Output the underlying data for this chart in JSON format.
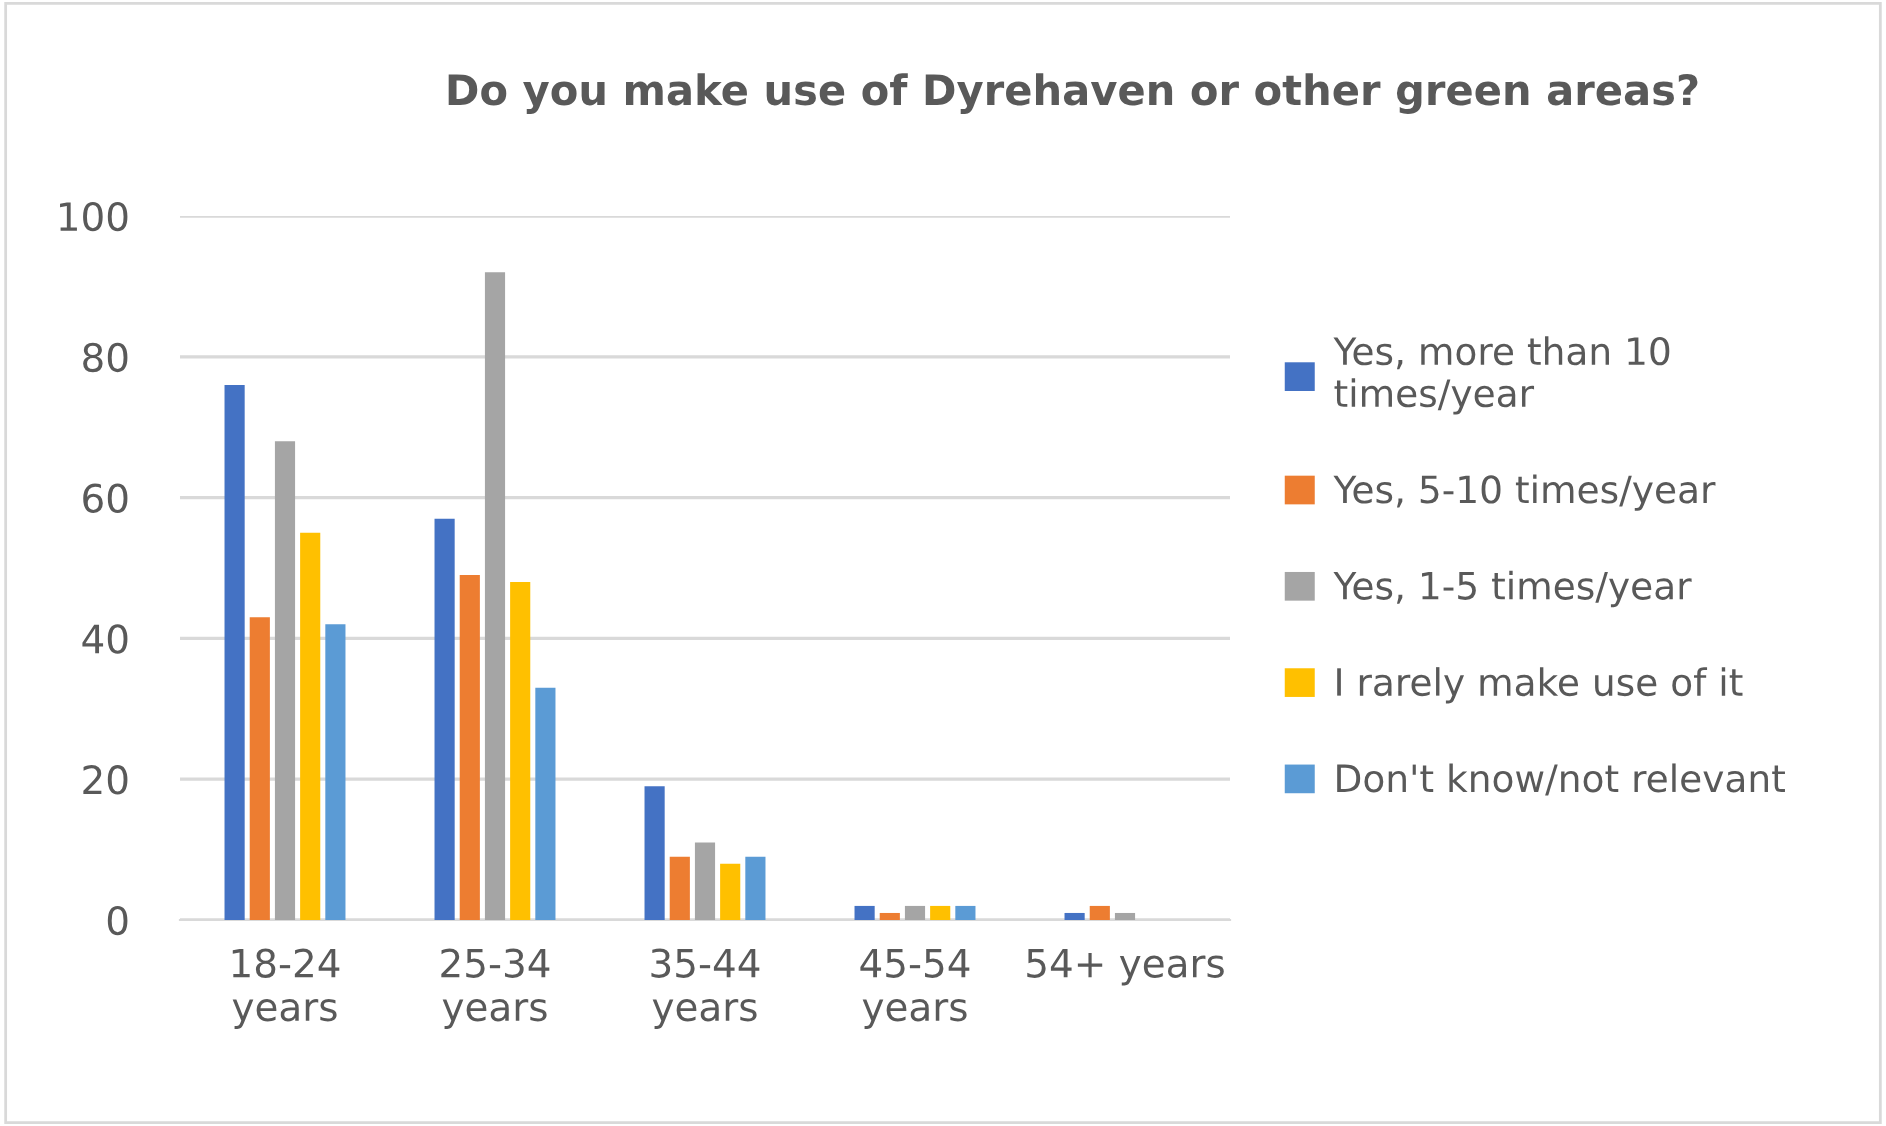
{
  "chart_data": {
    "type": "bar",
    "title": "Do you make use of Dyrehaven or other green areas?",
    "categories": [
      "18-24\nyears",
      "25-34\nyears",
      "35-44\nyears",
      "45-54\nyears",
      "54+ years"
    ],
    "series": [
      {
        "name": "Yes, more than 10\ntimes/year",
        "color": "#4472c4",
        "values": [
          76,
          57,
          19,
          2,
          1
        ]
      },
      {
        "name": "Yes, 5-10 times/year",
        "color": "#ed7d31",
        "values": [
          43,
          49,
          9,
          1,
          2
        ]
      },
      {
        "name": "Yes, 1-5 times/year",
        "color": "#a5a5a5",
        "values": [
          68,
          92,
          11,
          2,
          1
        ]
      },
      {
        "name": "I rarely make use of it",
        "color": "#ffc000",
        "values": [
          55,
          48,
          8,
          2,
          null
        ]
      },
      {
        "name": "Don't know/not relevant",
        "color": "#5b9bd5",
        "values": [
          42,
          33,
          9,
          2,
          null
        ]
      }
    ],
    "ylim": [
      0,
      100
    ],
    "yticks": [
      0,
      20,
      40,
      60,
      80,
      100
    ],
    "grid": "y",
    "legend": "right"
  }
}
